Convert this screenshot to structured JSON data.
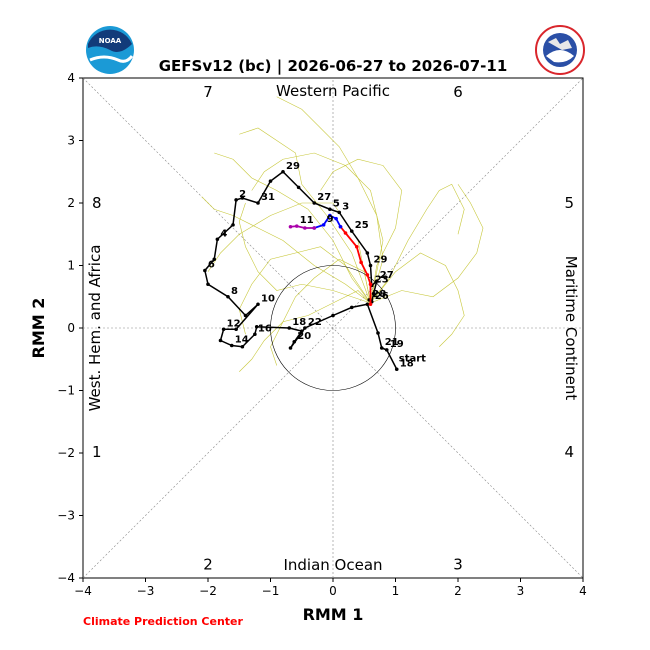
{
  "chart_data": {
    "type": "line",
    "title": "GEFSv12 (bc) | 2026-06-27 to 2026-07-11",
    "xlabel": "RMM 1",
    "ylabel": "RMM 2",
    "xlim": [
      -4,
      4
    ],
    "ylim": [
      -4,
      4
    ],
    "x_ticks": [
      "−4",
      "−3",
      "−2",
      "−1",
      "0",
      "1",
      "2",
      "3",
      "4"
    ],
    "y_ticks": [
      "−4",
      "−3",
      "−2",
      "−1",
      "0",
      "1",
      "2",
      "3",
      "4"
    ],
    "grid": false,
    "region_labels": {
      "top": "Western Pacific",
      "bottom": "Indian Ocean",
      "left": "West. Hem. and Africa",
      "right": "Maritime Continent"
    },
    "phase_numbers": [
      {
        "text": "1",
        "x": -3.78,
        "y": -1.98
      },
      {
        "text": "2",
        "x": -2.0,
        "y": -3.78
      },
      {
        "text": "3",
        "x": 2.0,
        "y": -3.78
      },
      {
        "text": "4",
        "x": 3.78,
        "y": -1.98
      },
      {
        "text": "5",
        "x": 3.78,
        "y": 2.0
      },
      {
        "text": "6",
        "x": 2.0,
        "y": 3.78
      },
      {
        "text": "7",
        "x": -2.0,
        "y": 3.78
      },
      {
        "text": "8",
        "x": -3.78,
        "y": 2.0
      }
    ],
    "credit": "Climate Prediction Center",
    "logos": {
      "left": "NOAA",
      "right": "NATIONAL WEATHER SERVICE"
    },
    "colors": {
      "observed": "#000000",
      "ensemble_mean_red": "#ff0000",
      "ensemble_mean_blue": "#0000ff",
      "ensemble_mean_purple": "#aa00aa",
      "members": "#c8c83c",
      "credit": "#ff0000"
    },
    "observed": {
      "name": "observed",
      "points": [
        {
          "x": 0.58,
          "y": 0.45,
          "label": "28"
        },
        {
          "x": 0.62,
          "y": 0.42,
          "label": "26"
        },
        {
          "x": 0.65,
          "y": 0.55,
          "label": ""
        },
        {
          "x": 0.7,
          "y": 0.75,
          "label": "27"
        },
        {
          "x": 0.62,
          "y": 0.68,
          "label": "23"
        },
        {
          "x": 0.6,
          "y": 1.0,
          "label": "29"
        },
        {
          "x": 0.55,
          "y": 1.2,
          "label": ""
        },
        {
          "x": 0.3,
          "y": 1.55,
          "label": "25"
        },
        {
          "x": 0.1,
          "y": 1.85,
          "label": "3"
        },
        {
          "x": -0.05,
          "y": 1.9,
          "label": "5"
        },
        {
          "x": -0.3,
          "y": 2.0,
          "label": "27"
        },
        {
          "x": -0.55,
          "y": 2.25,
          "label": ""
        },
        {
          "x": -0.8,
          "y": 2.5,
          "label": "29"
        },
        {
          "x": -1.0,
          "y": 2.35,
          "label": ""
        },
        {
          "x": -1.2,
          "y": 2.0,
          "label": "31"
        },
        {
          "x": -1.45,
          "y": 2.08,
          "label": ""
        },
        {
          "x": -1.55,
          "y": 2.05,
          "label": "2"
        },
        {
          "x": -1.6,
          "y": 1.65,
          "label": ""
        },
        {
          "x": -1.85,
          "y": 1.42,
          "label": "4"
        },
        {
          "x": -1.9,
          "y": 1.1,
          "label": ""
        },
        {
          "x": -2.05,
          "y": 0.92,
          "label": "6"
        },
        {
          "x": -2.0,
          "y": 0.7,
          "label": ""
        },
        {
          "x": -1.68,
          "y": 0.5,
          "label": "8"
        },
        {
          "x": -1.4,
          "y": 0.2,
          "label": ""
        },
        {
          "x": -1.2,
          "y": 0.38,
          "label": "10"
        },
        {
          "x": -1.55,
          "y": -0.02,
          "label": ""
        },
        {
          "x": -1.75,
          "y": -0.02,
          "label": "12"
        },
        {
          "x": -1.8,
          "y": -0.2,
          "label": ""
        },
        {
          "x": -1.62,
          "y": -0.28,
          "label": "14"
        },
        {
          "x": -1.45,
          "y": -0.3,
          "label": ""
        },
        {
          "x": -1.25,
          "y": -0.1,
          "label": "16"
        },
        {
          "x": -1.22,
          "y": 0.02,
          "label": ""
        },
        {
          "x": -0.7,
          "y": 0.0,
          "label": "18"
        },
        {
          "x": -0.5,
          "y": -0.05,
          "label": ""
        },
        {
          "x": -0.62,
          "y": -0.22,
          "label": "20"
        },
        {
          "x": -0.68,
          "y": -0.32,
          "label": ""
        },
        {
          "x": -0.45,
          "y": 0.0,
          "label": "22"
        },
        {
          "x": 0.0,
          "y": 0.2,
          "label": ""
        },
        {
          "x": 0.3,
          "y": 0.33,
          "label": ""
        },
        {
          "x": 0.55,
          "y": 0.38,
          "label": ""
        },
        {
          "x": 0.72,
          "y": -0.08,
          "label": ""
        },
        {
          "x": 0.78,
          "y": -0.32,
          "label": "21"
        },
        {
          "x": 0.86,
          "y": -0.35,
          "label": "19"
        },
        {
          "x": 1.02,
          "y": -0.66,
          "label": "18"
        }
      ]
    },
    "start_label": {
      "text": "start",
      "x": 1.02,
      "y": -0.66
    },
    "ensemble_mean": [
      {
        "name": "mean-red",
        "color": "#ff0000",
        "points": [
          {
            "x": 0.6,
            "y": 0.38,
            "label": ""
          },
          {
            "x": 0.6,
            "y": 0.7,
            "label": ""
          },
          {
            "x": 0.55,
            "y": 0.85,
            "label": ""
          },
          {
            "x": 0.45,
            "y": 1.05,
            "label": ""
          },
          {
            "x": 0.38,
            "y": 1.3,
            "label": ""
          },
          {
            "x": 0.2,
            "y": 1.52,
            "label": ""
          },
          {
            "x": 0.12,
            "y": 1.62,
            "label": ""
          }
        ]
      },
      {
        "name": "mean-blue",
        "color": "#0000ff",
        "points": [
          {
            "x": 0.12,
            "y": 1.62,
            "label": ""
          },
          {
            "x": 0.05,
            "y": 1.75,
            "label": ""
          },
          {
            "x": -0.05,
            "y": 1.8,
            "label": ""
          },
          {
            "x": -0.15,
            "y": 1.65,
            "label": "9"
          },
          {
            "x": -0.3,
            "y": 1.6,
            "label": ""
          }
        ]
      },
      {
        "name": "mean-purple",
        "color": "#aa00aa",
        "points": [
          {
            "x": -0.3,
            "y": 1.6,
            "label": ""
          },
          {
            "x": -0.45,
            "y": 1.6,
            "label": ""
          },
          {
            "x": -0.58,
            "y": 1.63,
            "label": "11"
          },
          {
            "x": -0.68,
            "y": 1.62,
            "label": ""
          }
        ]
      }
    ],
    "ensemble_members": [
      [
        [
          0.6,
          0.4
        ],
        [
          0.9,
          0.8
        ],
        [
          1.2,
          1.4
        ],
        [
          1.5,
          1.9
        ],
        [
          1.7,
          2.2
        ],
        [
          1.9,
          2.3
        ],
        [
          2.1,
          1.9
        ],
        [
          2.0,
          1.5
        ]
      ],
      [
        [
          0.6,
          0.4
        ],
        [
          0.3,
          0.8
        ],
        [
          0.0,
          1.4
        ],
        [
          -0.4,
          1.9
        ],
        [
          -0.9,
          2.2
        ],
        [
          -1.3,
          2.4
        ],
        [
          -1.6,
          2.7
        ],
        [
          -1.9,
          2.8
        ]
      ],
      [
        [
          0.6,
          0.4
        ],
        [
          0.2,
          1.0
        ],
        [
          -0.2,
          1.3
        ],
        [
          -0.6,
          1.2
        ],
        [
          -1.0,
          1.1
        ],
        [
          -1.3,
          0.7
        ],
        [
          -1.5,
          0.3
        ],
        [
          -1.4,
          -0.1
        ]
      ],
      [
        [
          0.6,
          0.4
        ],
        [
          0.8,
          1.1
        ],
        [
          0.7,
          1.8
        ],
        [
          0.4,
          2.4
        ],
        [
          0.1,
          2.9
        ],
        [
          -0.2,
          3.2
        ],
        [
          -0.5,
          3.5
        ],
        [
          -0.9,
          3.7
        ]
      ],
      [
        [
          0.6,
          0.4
        ],
        [
          0.4,
          0.6
        ],
        [
          0.0,
          0.4
        ],
        [
          -0.4,
          0.2
        ],
        [
          -0.8,
          0.1
        ],
        [
          -1.1,
          -0.2
        ],
        [
          -1.3,
          -0.5
        ],
        [
          -1.5,
          -0.7
        ]
      ],
      [
        [
          0.6,
          0.4
        ],
        [
          1.0,
          0.9
        ],
        [
          1.4,
          1.2
        ],
        [
          1.8,
          1.0
        ],
        [
          2.0,
          0.6
        ],
        [
          2.1,
          0.2
        ],
        [
          1.9,
          -0.1
        ],
        [
          1.7,
          -0.3
        ]
      ],
      [
        [
          0.6,
          0.4
        ],
        [
          0.3,
          1.2
        ],
        [
          -0.1,
          1.8
        ],
        [
          -0.5,
          2.3
        ],
        [
          -0.6,
          2.8
        ],
        [
          -0.9,
          3.0
        ],
        [
          -1.2,
          3.2
        ],
        [
          -1.5,
          3.1
        ]
      ],
      [
        [
          0.6,
          0.4
        ],
        [
          0.5,
          0.9
        ],
        [
          0.1,
          1.1
        ],
        [
          -0.3,
          0.8
        ],
        [
          -0.6,
          0.5
        ],
        [
          -0.8,
          0.1
        ],
        [
          -1.0,
          -0.3
        ],
        [
          -0.9,
          -0.6
        ]
      ],
      [
        [
          0.6,
          0.4
        ],
        [
          1.1,
          0.6
        ],
        [
          1.6,
          0.5
        ],
        [
          2.0,
          0.8
        ],
        [
          2.3,
          1.2
        ],
        [
          2.4,
          1.6
        ],
        [
          2.2,
          2.0
        ],
        [
          2.0,
          2.3
        ]
      ],
      [
        [
          0.6,
          0.4
        ],
        [
          0.2,
          0.7
        ],
        [
          -0.3,
          1.0
        ],
        [
          -0.8,
          1.4
        ],
        [
          -1.2,
          1.6
        ],
        [
          -1.6,
          1.8
        ],
        [
          -1.9,
          1.9
        ],
        [
          -2.1,
          2.1
        ]
      ],
      [
        [
          0.6,
          0.4
        ],
        [
          0.8,
          1.4
        ],
        [
          0.6,
          2.2
        ],
        [
          0.2,
          2.6
        ],
        [
          -0.3,
          2.8
        ],
        [
          -0.8,
          2.7
        ],
        [
          -1.1,
          2.5
        ],
        [
          -1.3,
          2.2
        ]
      ],
      [
        [
          0.6,
          0.4
        ],
        [
          0.0,
          0.6
        ],
        [
          -0.5,
          0.7
        ],
        [
          -0.9,
          0.6
        ],
        [
          -1.2,
          0.9
        ],
        [
          -1.4,
          1.3
        ],
        [
          -1.5,
          1.7
        ],
        [
          -1.4,
          2.0
        ]
      ],
      [
        [
          0.6,
          0.4
        ],
        [
          0.7,
          1.0
        ],
        [
          1.0,
          1.6
        ],
        [
          1.1,
          2.2
        ],
        [
          0.8,
          2.6
        ],
        [
          0.4,
          2.7
        ],
        [
          0.0,
          2.5
        ],
        [
          -0.2,
          2.2
        ]
      ],
      [
        [
          0.6,
          0.4
        ],
        [
          0.4,
          1.4
        ],
        [
          0.0,
          2.0
        ],
        [
          -0.5,
          2.0
        ],
        [
          -1.0,
          1.8
        ],
        [
          -1.5,
          1.5
        ],
        [
          -1.8,
          1.2
        ],
        [
          -2.0,
          0.9
        ]
      ]
    ],
    "amplitude_circle_radius": 1
  }
}
